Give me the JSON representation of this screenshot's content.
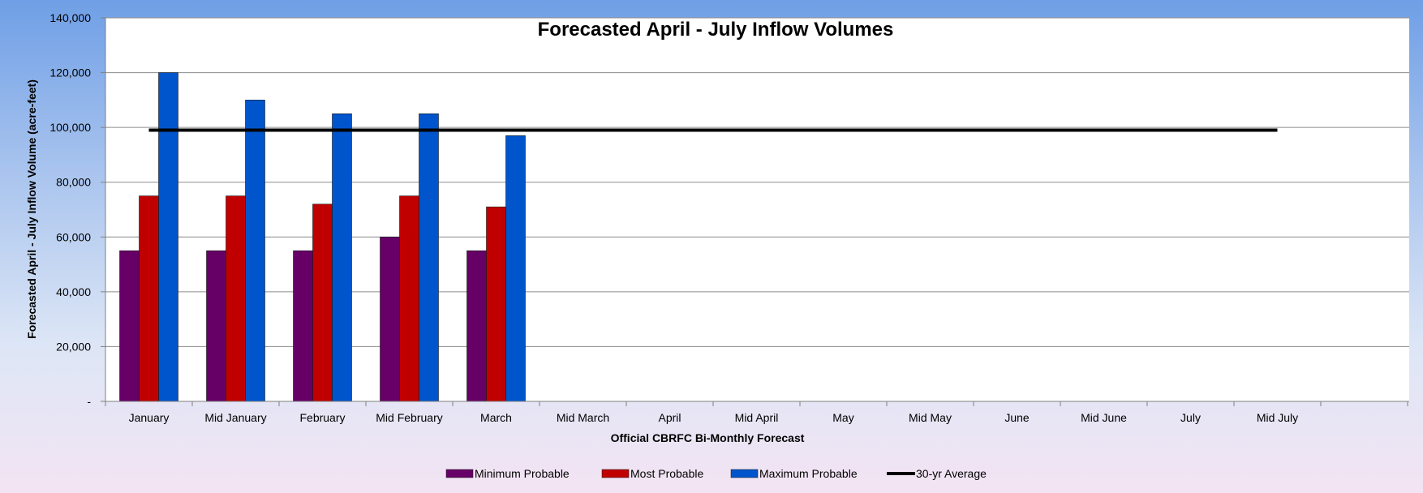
{
  "chart_data": {
    "type": "bar",
    "title": "Forecasted April - July Inflow Volumes",
    "xlabel": "Official CBRFC Bi-Monthly Forecast",
    "ylabel": "Forecasted April - July Inflow Volume (acre-feet)",
    "categories": [
      "January",
      "Mid January",
      "February",
      "Mid February",
      "March",
      "Mid March",
      "April",
      "Mid April",
      "May",
      "Mid May",
      "June",
      "Mid June",
      "July",
      "Mid July"
    ],
    "ylim": [
      0,
      140000
    ],
    "yticks": [
      0,
      20000,
      40000,
      60000,
      80000,
      100000,
      120000,
      140000
    ],
    "ytick_labels": [
      "-",
      "20,000",
      "40,000",
      "60,000",
      "80,000",
      "100,000",
      "120,000",
      "140,000"
    ],
    "series": [
      {
        "name": "Minimum Probable",
        "kind": "bar",
        "color": "#660066",
        "values": [
          55000,
          55000,
          55000,
          60000,
          55000,
          null,
          null,
          null,
          null,
          null,
          null,
          null,
          null,
          null
        ]
      },
      {
        "name": "Most Probable",
        "kind": "bar",
        "color": "#c00000",
        "values": [
          75000,
          75000,
          72000,
          75000,
          71000,
          null,
          null,
          null,
          null,
          null,
          null,
          null,
          null,
          null
        ]
      },
      {
        "name": "Maximum Probable",
        "kind": "bar",
        "color": "#0055cc",
        "values": [
          120000,
          110000,
          105000,
          105000,
          97000,
          null,
          null,
          null,
          null,
          null,
          null,
          null,
          null,
          null
        ]
      },
      {
        "name": "30-yr Average",
        "kind": "line",
        "color": "#000000",
        "values": [
          99000,
          99000,
          99000,
          99000,
          99000,
          99000,
          99000,
          99000,
          99000,
          99000,
          99000,
          99000,
          99000,
          99000
        ]
      }
    ],
    "grid": true,
    "legend_position": "bottom"
  }
}
